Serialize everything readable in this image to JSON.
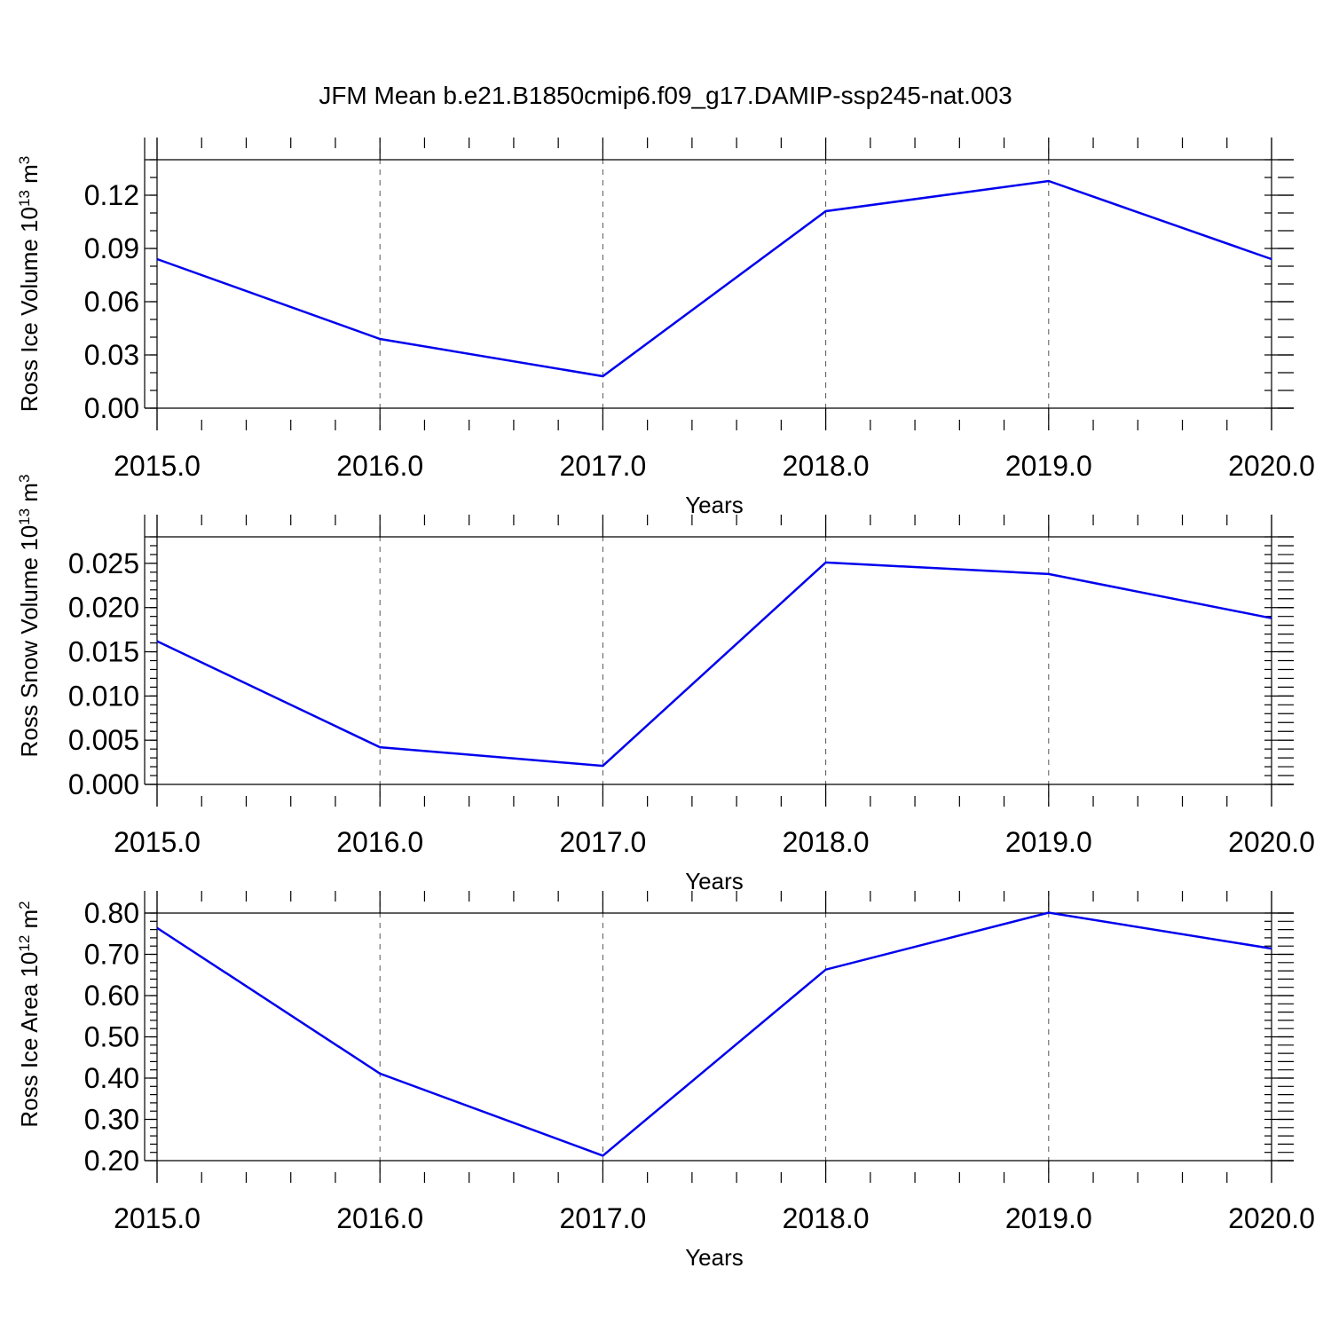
{
  "title": "JFM Mean b.e21.B1850cmip6.f09_g17.DAMIP-ssp245-nat.003",
  "colors": {
    "line": "#0000ee"
  },
  "chart_data": [
    {
      "type": "line",
      "x": [
        2015,
        2016,
        2017,
        2018,
        2019,
        2020
      ],
      "xtick_labels": [
        "2015.0",
        "2016.0",
        "2017.0",
        "2018.0",
        "2019.0",
        "2020.0"
      ],
      "series": [
        {
          "values": [
            0.084,
            0.039,
            0.018,
            0.111,
            0.128,
            0.084
          ]
        }
      ],
      "xlabel": "Years",
      "ylabel": {
        "main": "Ross Ice Volume 10",
        "exp": "13",
        "unit": " m",
        "unit_exp": "3"
      },
      "xlim": [
        2015,
        2020
      ],
      "ylim": [
        0,
        0.14
      ],
      "ytick_values": [
        0,
        0.03,
        0.06,
        0.09,
        0.12
      ],
      "ytick_labels": [
        "0.00",
        "0.03",
        "0.06",
        "0.09",
        "0.12"
      ],
      "minor_step": 0.01,
      "grid": "x-dashed"
    },
    {
      "type": "line",
      "x": [
        2015,
        2016,
        2017,
        2018,
        2019,
        2020
      ],
      "xtick_labels": [
        "2015.0",
        "2016.0",
        "2017.0",
        "2018.0",
        "2019.0",
        "2020.0"
      ],
      "series": [
        {
          "values": [
            0.0162,
            0.0042,
            0.0021,
            0.0251,
            0.0238,
            0.0188
          ]
        }
      ],
      "xlabel": "Years",
      "ylabel": {
        "main": "Ross Snow Volume 10",
        "exp": "13",
        "unit": " m",
        "unit_exp": "3"
      },
      "xlim": [
        2015,
        2020
      ],
      "ylim": [
        0,
        0.028
      ],
      "ytick_values": [
        0,
        0.005,
        0.01,
        0.015,
        0.02,
        0.025
      ],
      "ytick_labels": [
        "0.000",
        "0.005",
        "0.010",
        "0.015",
        "0.020",
        "0.025"
      ],
      "minor_step": 0.001,
      "grid": "x-dashed"
    },
    {
      "type": "line",
      "x": [
        2015,
        2016,
        2017,
        2018,
        2019,
        2020
      ],
      "xtick_labels": [
        "2015.0",
        "2016.0",
        "2017.0",
        "2018.0",
        "2019.0",
        "2020.0"
      ],
      "series": [
        {
          "values": [
            0.764,
            0.411,
            0.212,
            0.663,
            0.801,
            0.714
          ]
        }
      ],
      "xlabel": "Years",
      "ylabel": {
        "main": "Ross Ice Area 10",
        "exp": "12",
        "unit": " m",
        "unit_exp": "2"
      },
      "xlim": [
        2015,
        2020
      ],
      "ylim": [
        0.2,
        0.8
      ],
      "ytick_values": [
        0.2,
        0.3,
        0.4,
        0.5,
        0.6,
        0.7,
        0.8
      ],
      "ytick_labels": [
        "0.20",
        "0.30",
        "0.40",
        "0.50",
        "0.60",
        "0.70",
        "0.80"
      ],
      "minor_step": 0.02,
      "grid": "x-dashed"
    }
  ]
}
